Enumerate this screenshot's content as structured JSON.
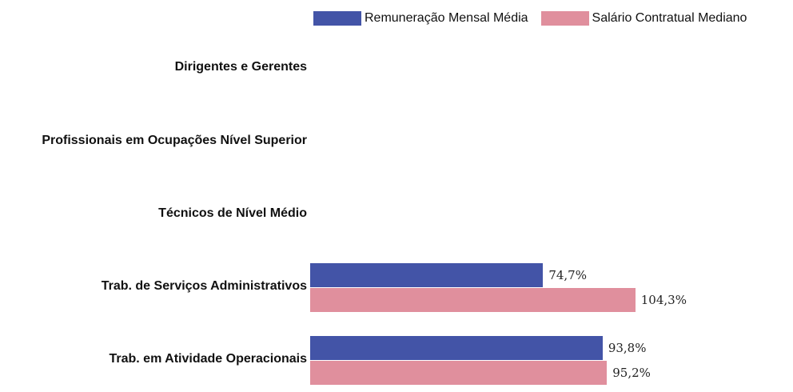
{
  "chart_data": {
    "type": "bar",
    "orientation": "horizontal",
    "categories": [
      "Dirigentes e Gerentes",
      "Profissionais em Ocupações Nível Superior",
      "Técnicos de Nível Médio",
      "Trab. de Serviços Administrativos",
      "Trab. em Atividade Operacionais"
    ],
    "series": [
      {
        "name": "Remuneração Mensal Média",
        "color": "#4354a7",
        "values": [
          null,
          null,
          null,
          74.7,
          93.8
        ],
        "labels": [
          "",
          "",
          "",
          "74,7%",
          "93,8%"
        ]
      },
      {
        "name": "Salário Contratual Mediano",
        "color": "#e08f9d",
        "values": [
          null,
          null,
          null,
          104.3,
          95.2
        ],
        "labels": [
          "",
          "",
          "",
          "104,3%",
          "95,2%"
        ]
      }
    ],
    "legend_position": "top-right",
    "grid": false
  }
}
